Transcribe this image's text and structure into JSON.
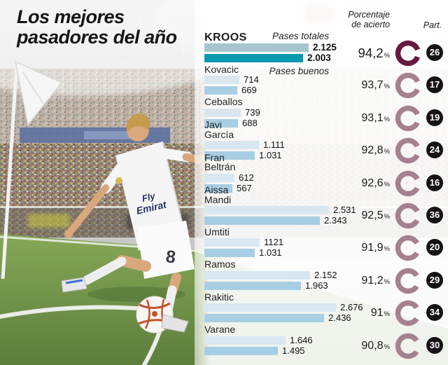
{
  "title": {
    "line1": "Los mejores",
    "line2": "pasadores del año"
  },
  "columns": {
    "accuracy_line1": "Porcentaje",
    "accuracy_line2": "de acierto",
    "participations": "Part."
  },
  "series_labels": {
    "totals": "Pases totales",
    "good": "Pases buenos"
  },
  "percent_symbol": "%",
  "colors": {
    "featured_bar_total": "#a6c5cd",
    "featured_bar_good": "#0c9ab0",
    "bar_total": "#d8e7f0",
    "bar_good": "#a8cee3",
    "featured_ring": "#661b41",
    "ring": "#a5808f",
    "badge_bg": "#161215",
    "badge_text": "#ffffff"
  },
  "chart_data": {
    "type": "bar",
    "orientation": "horizontal",
    "title": "Los mejores pasadores del año",
    "series": [
      {
        "name": "Pases totales"
      },
      {
        "name": "Pases buenos"
      }
    ],
    "legend_position": "inline-first-rows",
    "grid": false,
    "players": [
      {
        "name": "KROOS",
        "name_lines": [
          "KROOS"
        ],
        "featured": true,
        "passes_total": {
          "display": "2.125",
          "value": 2125
        },
        "passes_good": {
          "display": "2.003",
          "value": 2003
        },
        "accuracy_display": "94,2",
        "accuracy_value": 94.2,
        "participations": "26"
      },
      {
        "name": "Kovacic",
        "name_lines": [
          "Kovacic"
        ],
        "featured": false,
        "passes_total": {
          "display": "714",
          "value": 714
        },
        "passes_good": {
          "display": "669",
          "value": 669
        },
        "accuracy_display": "93,7",
        "accuracy_value": 93.7,
        "participations": "17"
      },
      {
        "name": "Ceballos",
        "name_lines": [
          "Ceballos"
        ],
        "featured": false,
        "passes_total": {
          "display": "739",
          "value": 739
        },
        "passes_good": {
          "display": "688",
          "value": 688
        },
        "accuracy_display": "93,1",
        "accuracy_value": 93.1,
        "participations": "19"
      },
      {
        "name": "Javi García",
        "name_lines": [
          "Javi",
          "García"
        ],
        "featured": false,
        "passes_total": {
          "display": "1.111",
          "value": 1111
        },
        "passes_good": {
          "display": "1.031",
          "value": 1031
        },
        "accuracy_display": "92,8",
        "accuracy_value": 92.8,
        "participations": "24"
      },
      {
        "name": "Fran Beltrán",
        "name_lines": [
          "Fran",
          "Beltrán"
        ],
        "featured": false,
        "passes_total": {
          "display": "612",
          "value": 612
        },
        "passes_good": {
          "display": "567",
          "value": 567
        },
        "accuracy_display": "92,6",
        "accuracy_value": 92.6,
        "participations": "16"
      },
      {
        "name": "Aissa Mandi",
        "name_lines": [
          "Aissa",
          "Mandi"
        ],
        "featured": false,
        "passes_total": {
          "display": "2.531",
          "value": 2531
        },
        "passes_good": {
          "display": "2.343",
          "value": 2343
        },
        "accuracy_display": "92,5",
        "accuracy_value": 92.5,
        "participations": "36"
      },
      {
        "name": "Umtiti",
        "name_lines": [
          "Umtiti"
        ],
        "featured": false,
        "passes_total": {
          "display": "1121",
          "value": 1121
        },
        "passes_good": {
          "display": "1.031",
          "value": 1031
        },
        "accuracy_display": "91,9",
        "accuracy_value": 91.9,
        "participations": "20"
      },
      {
        "name": "Ramos",
        "name_lines": [
          "Ramos"
        ],
        "featured": false,
        "passes_total": {
          "display": "2.152",
          "value": 2152
        },
        "passes_good": {
          "display": "1.963",
          "value": 1963
        },
        "accuracy_display": "91,2",
        "accuracy_value": 91.2,
        "participations": "29"
      },
      {
        "name": "Rakitic",
        "name_lines": [
          "Rakitic"
        ],
        "featured": false,
        "passes_total": {
          "display": "2.676",
          "value": 2676
        },
        "passes_good": {
          "display": "2.436",
          "value": 2436
        },
        "accuracy_display": "91",
        "accuracy_value": 91,
        "participations": "34"
      },
      {
        "name": "Varane",
        "name_lines": [
          "Varane"
        ],
        "featured": false,
        "passes_total": {
          "display": "1.646",
          "value": 1646
        },
        "passes_good": {
          "display": "1.495",
          "value": 1495
        },
        "accuracy_display": "90,8",
        "accuracy_value": 90.8,
        "participations": "30"
      }
    ]
  }
}
